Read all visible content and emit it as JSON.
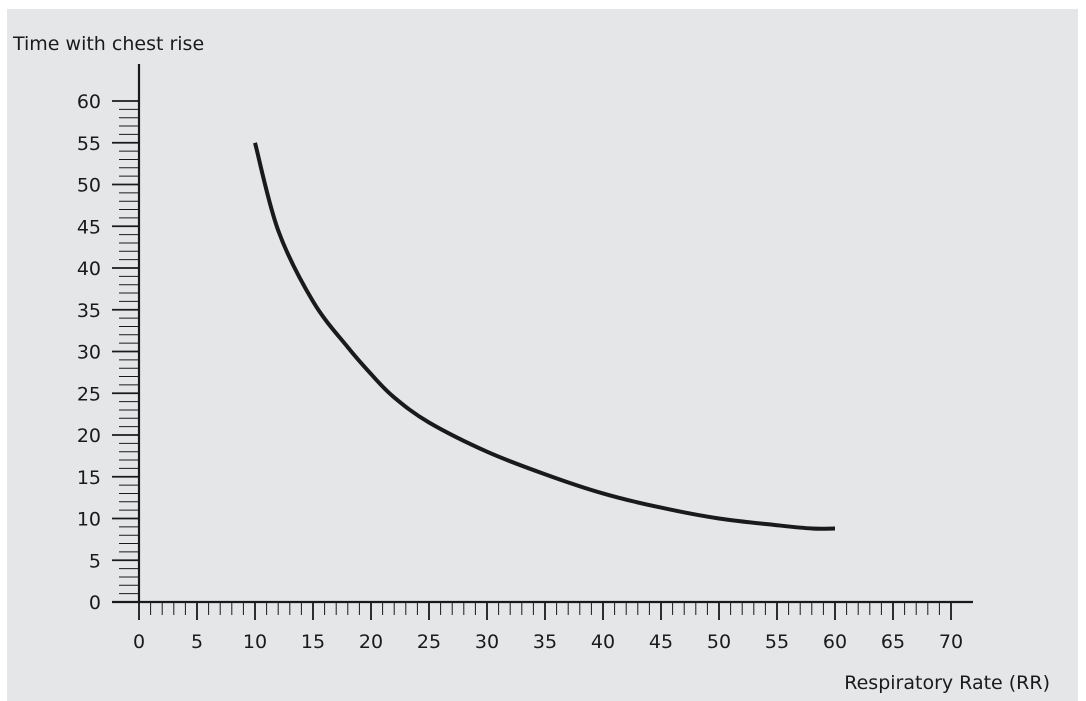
{
  "chart_data": {
    "type": "line",
    "title": "",
    "xlabel": "Respiratory Rate (RR)",
    "ylabel": "Time with chest rise",
    "xlim": [
      0,
      70
    ],
    "ylim": [
      0,
      60
    ],
    "x_ticks": [
      "0",
      "5",
      "10",
      "15",
      "20",
      "25",
      "30",
      "35",
      "40",
      "45",
      "50",
      "55",
      "60",
      "65",
      "70"
    ],
    "y_ticks": [
      "0",
      "5",
      "10",
      "15",
      "20",
      "25",
      "30",
      "35",
      "40",
      "45",
      "50",
      "55",
      "60"
    ],
    "x_minor_step": 1,
    "y_minor_step": 1,
    "grid": false,
    "legend": "none",
    "series": [
      {
        "x": [
          10,
          12,
          15,
          18,
          20,
          22,
          25,
          30,
          35,
          40,
          45,
          50,
          55,
          58,
          60
        ],
        "y": [
          55,
          44.5,
          36,
          30.5,
          27.3,
          24.5,
          21.5,
          18,
          15.3,
          13,
          11.3,
          10,
          9.2,
          8.8,
          8.8
        ],
        "color": "#1a1a1a"
      }
    ]
  }
}
